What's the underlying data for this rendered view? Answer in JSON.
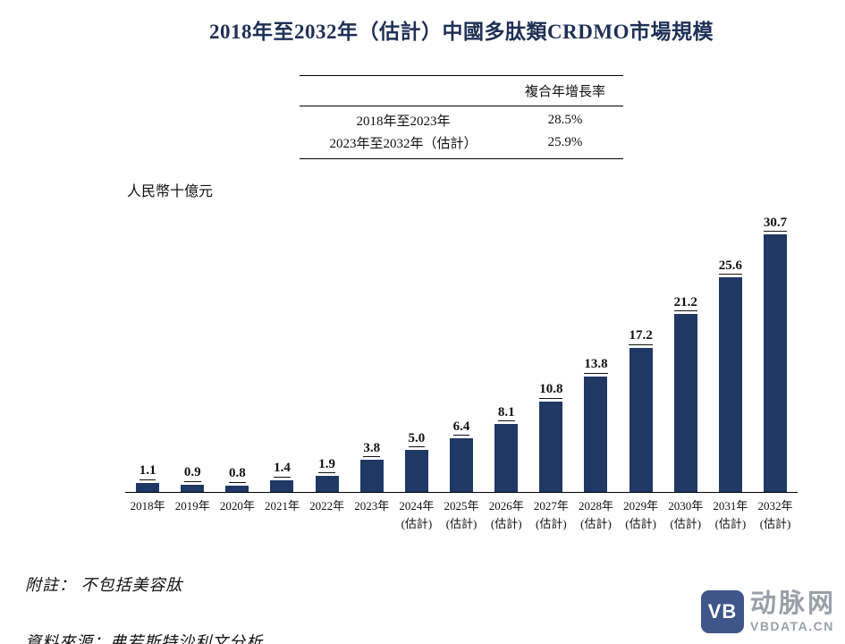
{
  "title": "2018年至2032年（估計）中國多肽類CRDMO市場規模",
  "cagr_table": {
    "header": "複合年增長率",
    "rows": [
      {
        "period": "2018年至2023年",
        "value": "28.5%"
      },
      {
        "period": "2023年至2032年（估計）",
        "value": "25.9%"
      }
    ]
  },
  "unit_label": "人民幣十億元",
  "chart_data": {
    "type": "bar",
    "title": "2018年至2032年（估計）中國多肽類CRDMO市場規模",
    "ylabel": "人民幣十億元",
    "categories": [
      "2018年",
      "2019年",
      "2020年",
      "2021年",
      "2022年",
      "2023年",
      "2024年",
      "2025年",
      "2026年",
      "2027年",
      "2028年",
      "2029年",
      "2030年",
      "2031年",
      "2032年"
    ],
    "category_subs": [
      "",
      "",
      "",
      "",
      "",
      "",
      "(估計)",
      "(估計)",
      "(估計)",
      "(估計)",
      "(估計)",
      "(估計)",
      "(估計)",
      "(估計)",
      "(估計)"
    ],
    "values": [
      1.1,
      0.9,
      0.8,
      1.4,
      1.9,
      3.8,
      5.0,
      6.4,
      8.1,
      10.8,
      13.8,
      17.2,
      21.2,
      25.6,
      30.7
    ],
    "ylim": [
      0,
      32
    ],
    "bar_color": "#1F3864",
    "grid": false,
    "legend": false
  },
  "notes": {
    "footnote": "附註： 不包括美容肽",
    "source": "資料來源：弗若斯特沙利文分析"
  },
  "logo": {
    "mark": "VB",
    "name": "动脉网",
    "domain": "VBDATA.CN"
  },
  "colors": {
    "bar": "#1F3864",
    "title": "#1f3056",
    "logo_blue": "#3f568a",
    "logo_gray": "#9aa0aa"
  }
}
